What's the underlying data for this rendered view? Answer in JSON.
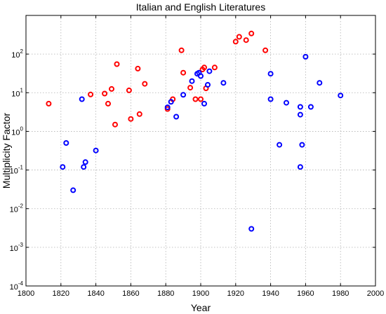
{
  "chart_data": {
    "type": "scatter",
    "title": "Italian and English Literatures",
    "xlabel": "Year",
    "ylabel": "Multiplicity Factor",
    "xlim": [
      1800,
      2000
    ],
    "ylim": [
      0.0001,
      1000
    ],
    "yscale": "log",
    "grid": true,
    "x_ticks": [
      "1800",
      "1820",
      "1840",
      "1860",
      "1880",
      "1900",
      "1920",
      "1940",
      "1960",
      "1980",
      "2000"
    ],
    "y_ticks": [
      {
        "base": "10",
        "exp": "-4"
      },
      {
        "base": "10",
        "exp": "-3"
      },
      {
        "base": "10",
        "exp": "-2"
      },
      {
        "base": "10",
        "exp": "-1"
      },
      {
        "base": "10",
        "exp": "0"
      },
      {
        "base": "10",
        "exp": "1"
      },
      {
        "base": "10",
        "exp": "2"
      }
    ],
    "series": [
      {
        "color": "#ff0000",
        "points": [
          [
            1813,
            5.2
          ],
          [
            1837,
            9.0
          ],
          [
            1845,
            9.5
          ],
          [
            1847,
            5.2
          ],
          [
            1849,
            12.5
          ],
          [
            1851,
            1.5
          ],
          [
            1852,
            55
          ],
          [
            1859,
            11.5
          ],
          [
            1860,
            2.1
          ],
          [
            1864,
            42
          ],
          [
            1865,
            2.8
          ],
          [
            1868,
            17
          ],
          [
            1881,
            3.8
          ],
          [
            1884,
            6.8
          ],
          [
            1889,
            125
          ],
          [
            1890,
            33
          ],
          [
            1894,
            13.5
          ],
          [
            1897,
            6.8
          ],
          [
            1900,
            6.8
          ],
          [
            1901,
            40
          ],
          [
            1902,
            45
          ],
          [
            1903,
            13
          ],
          [
            1908,
            45
          ],
          [
            1920,
            210
          ],
          [
            1922,
            280
          ],
          [
            1926,
            230
          ],
          [
            1929,
            340
          ],
          [
            1937,
            125
          ]
        ]
      },
      {
        "color": "#0000ff",
        "points": [
          [
            1821,
            0.12
          ],
          [
            1823,
            0.5
          ],
          [
            1827,
            0.03
          ],
          [
            1832,
            6.8
          ],
          [
            1833,
            0.12
          ],
          [
            1834,
            0.16
          ],
          [
            1840,
            0.32
          ],
          [
            1881,
            4.2
          ],
          [
            1883,
            5.8
          ],
          [
            1886,
            2.4
          ],
          [
            1890,
            8.8
          ],
          [
            1895,
            20
          ],
          [
            1898,
            31
          ],
          [
            1899,
            33
          ],
          [
            1900,
            27
          ],
          [
            1902,
            5.2
          ],
          [
            1904,
            16
          ],
          [
            1905,
            36
          ],
          [
            1913,
            18
          ],
          [
            1929,
            0.003
          ],
          [
            1940,
            31
          ],
          [
            1940,
            6.8
          ],
          [
            1945,
            0.45
          ],
          [
            1949,
            5.5
          ],
          [
            1957,
            4.3
          ],
          [
            1957,
            2.7
          ],
          [
            1957,
            0.12
          ],
          [
            1958,
            0.45
          ],
          [
            1960,
            85
          ],
          [
            1963,
            4.3
          ],
          [
            1968,
            18
          ],
          [
            1980,
            8.5
          ]
        ]
      }
    ]
  }
}
